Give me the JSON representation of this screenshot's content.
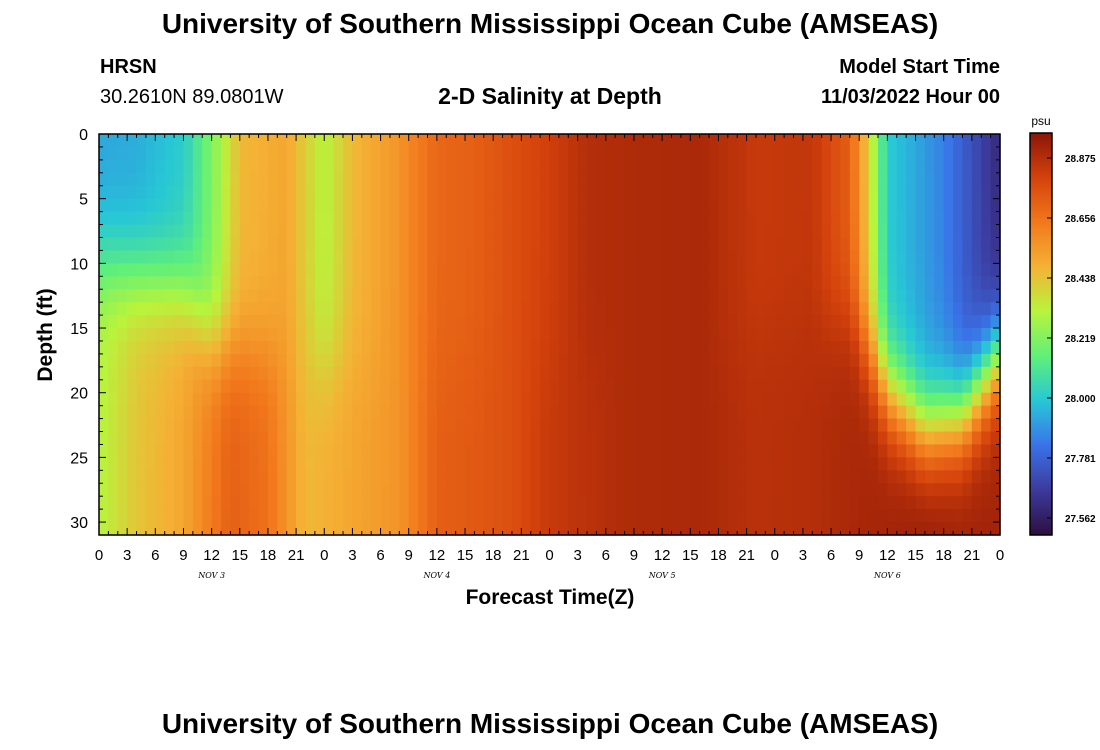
{
  "header": {
    "title": "University of Southern Mississippi Ocean Cube (AMSEAS)",
    "station": "HRSN",
    "coords": "30.2610N  89.0801W",
    "subtitle": "2-D Salinity at Depth",
    "model_start_label": "Model Start Time",
    "model_start_value": "11/03/2022 Hour 00"
  },
  "footer": {
    "title": "University of Southern Mississippi Ocean Cube (AMSEAS)"
  },
  "chart_data": {
    "type": "heatmap",
    "xlabel": "Forecast Time(Z)",
    "ylabel": "Depth (ft)",
    "colorbar_unit": "psu",
    "x_tick_labels": [
      "0",
      "3",
      "6",
      "9",
      "12",
      "15",
      "18",
      "21",
      "0",
      "3",
      "6",
      "9",
      "12",
      "15",
      "18",
      "21",
      "0",
      "3",
      "6",
      "9",
      "12",
      "15",
      "18",
      "21",
      "0",
      "3",
      "6",
      "9",
      "12",
      "15",
      "18",
      "21",
      "0"
    ],
    "day_labels": [
      {
        "label": "NOV 3",
        "hour": 12
      },
      {
        "label": "NOV 4",
        "hour": 36
      },
      {
        "label": "NOV 5",
        "hour": 60
      },
      {
        "label": "NOV 6",
        "hour": 84
      }
    ],
    "xlim": [
      0,
      96
    ],
    "y_ticks": [
      0,
      5,
      10,
      15,
      20,
      25,
      30
    ],
    "ylim": [
      0,
      31
    ],
    "colorbar_ticks": [
      "28.875",
      "28.656",
      "28.438",
      "28.219",
      "28.000",
      "27.781",
      "27.562"
    ],
    "value_range": [
      27.5,
      28.95
    ],
    "colors": [
      "#2c0f40",
      "#3c3a9c",
      "#3a72e8",
      "#27c7d6",
      "#5ff07a",
      "#b8f43c",
      "#f4b235",
      "#f2781c",
      "#d4420c",
      "#8b1607"
    ],
    "surface_profile": [
      {
        "hour": 0,
        "value": 27.92
      },
      {
        "hour": 4,
        "value": 27.93
      },
      {
        "hour": 9,
        "value": 28.0
      },
      {
        "hour": 12,
        "value": 28.2
      },
      {
        "hour": 15,
        "value": 28.45
      },
      {
        "hour": 20,
        "value": 28.5
      },
      {
        "hour": 24,
        "value": 28.3
      },
      {
        "hour": 27,
        "value": 28.45
      },
      {
        "hour": 32,
        "value": 28.55
      },
      {
        "hour": 36,
        "value": 28.68
      },
      {
        "hour": 40,
        "value": 28.7
      },
      {
        "hour": 44,
        "value": 28.75
      },
      {
        "hour": 48,
        "value": 28.8
      },
      {
        "hour": 52,
        "value": 28.86
      },
      {
        "hour": 56,
        "value": 28.87
      },
      {
        "hour": 64,
        "value": 28.88
      },
      {
        "hour": 70,
        "value": 28.82
      },
      {
        "hour": 76,
        "value": 28.83
      },
      {
        "hour": 80,
        "value": 28.7
      },
      {
        "hour": 82,
        "value": 28.4
      },
      {
        "hour": 84,
        "value": 28.0
      },
      {
        "hour": 90,
        "value": 27.85
      },
      {
        "hour": 96,
        "value": 27.6
      }
    ],
    "deep_profile": [
      {
        "hour": 0,
        "value": 28.3
      },
      {
        "hour": 4,
        "value": 28.42
      },
      {
        "hour": 9,
        "value": 28.5
      },
      {
        "hour": 14,
        "value": 28.7
      },
      {
        "hour": 18,
        "value": 28.65
      },
      {
        "hour": 22,
        "value": 28.45
      },
      {
        "hour": 27,
        "value": 28.5
      },
      {
        "hour": 32,
        "value": 28.55
      },
      {
        "hour": 36,
        "value": 28.7
      },
      {
        "hour": 40,
        "value": 28.72
      },
      {
        "hour": 44,
        "value": 28.75
      },
      {
        "hour": 48,
        "value": 28.82
      },
      {
        "hour": 56,
        "value": 28.87
      },
      {
        "hour": 64,
        "value": 28.88
      },
      {
        "hour": 70,
        "value": 28.85
      },
      {
        "hour": 76,
        "value": 28.86
      },
      {
        "hour": 80,
        "value": 28.88
      },
      {
        "hour": 84,
        "value": 28.9
      },
      {
        "hour": 88,
        "value": 28.93
      },
      {
        "hour": 92,
        "value": 28.91
      },
      {
        "hour": 96,
        "value": 28.9
      }
    ],
    "transition_depth": [
      {
        "hour": 0,
        "value": 10
      },
      {
        "hour": 9,
        "value": 12
      },
      {
        "hour": 12,
        "value": 16
      },
      {
        "hour": 24,
        "value": 18
      },
      {
        "hour": 60,
        "value": 18
      },
      {
        "hour": 80,
        "value": 14
      },
      {
        "hour": 84,
        "value": 20
      },
      {
        "hour": 88,
        "value": 23
      },
      {
        "hour": 92,
        "value": 22
      },
      {
        "hour": 96,
        "value": 17
      }
    ]
  }
}
